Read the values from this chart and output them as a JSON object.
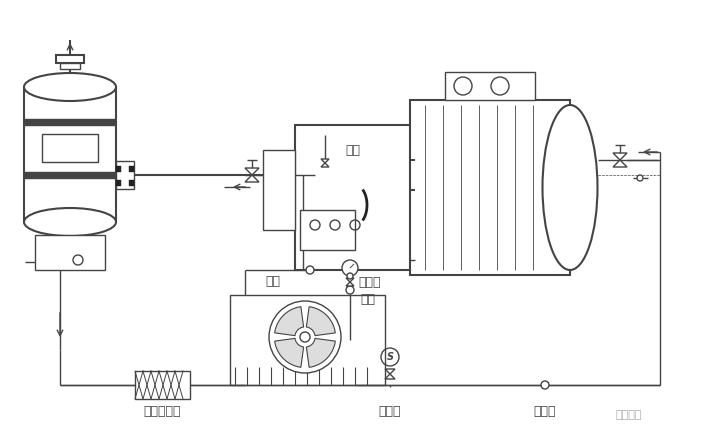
{
  "bg_color": "#ffffff",
  "line_color": "#444444",
  "dark_color": "#222222",
  "gray_color": "#888888",
  "light_gray": "#cccccc",
  "labels": {
    "manual_valve": "手阀",
    "ball_valve1": "球阀",
    "bypass_valve": "旁通阀",
    "ball_valve2": "球阀",
    "dry_filter": "干燥过滤器",
    "solenoid_valve": "电磁阀",
    "sight_glass": "油视镜",
    "brand": "制冷百科"
  },
  "font_size": 9,
  "brand_font_size": 8,
  "font_family": "SimHei"
}
